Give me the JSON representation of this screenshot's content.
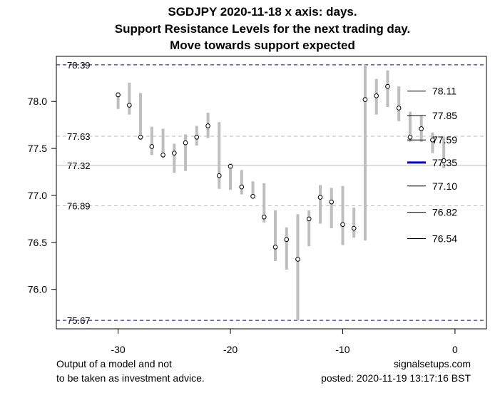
{
  "chart_data": {
    "type": "range",
    "title_lines": [
      "SGDJPY 2020-11-18 x axis: days.",
      "Support Resistance Levels for the next trading day.",
      "Move towards support expected"
    ],
    "xlim": [
      -35.5,
      2.8
    ],
    "ylim": [
      75.58,
      78.48
    ],
    "x_ticks": [
      {
        "value": -30,
        "label": "-30"
      },
      {
        "value": -20,
        "label": "-20"
      },
      {
        "value": -10,
        "label": "-10"
      },
      {
        "value": 0,
        "label": "0"
      }
    ],
    "y_ticks": [
      {
        "value": 76.0,
        "label": "76.0"
      },
      {
        "value": 76.5,
        "label": "76.5"
      },
      {
        "value": 77.0,
        "label": "77.0"
      },
      {
        "value": 77.5,
        "label": "77.5"
      },
      {
        "value": 78.0,
        "label": "78.0"
      }
    ],
    "hlines": [
      {
        "value": 78.39,
        "label": "78.39",
        "style": "dashed",
        "color": "#00008B"
      },
      {
        "value": 77.63,
        "label": "77.63",
        "style": "dashed",
        "color": "#BEBEBE"
      },
      {
        "value": 77.32,
        "label": "77.32",
        "style": "solid",
        "color": "#BEBEBE"
      },
      {
        "value": 76.89,
        "label": "76.89",
        "style": "dashed",
        "color": "#BEBEBE"
      },
      {
        "value": 75.67,
        "label": "75.67",
        "style": "dashed",
        "color": "#00008B"
      }
    ],
    "bars": [
      {
        "x": -30,
        "low": 77.92,
        "high": 78.1,
        "close": 78.07
      },
      {
        "x": -29,
        "low": 77.86,
        "high": 78.2,
        "close": 77.96
      },
      {
        "x": -28,
        "low": 77.59,
        "high": 78.09,
        "close": 77.62
      },
      {
        "x": -27,
        "low": 77.43,
        "high": 77.73,
        "close": 77.52
      },
      {
        "x": -26,
        "low": 77.4,
        "high": 77.71,
        "close": 77.43
      },
      {
        "x": -25,
        "low": 77.24,
        "high": 77.55,
        "close": 77.45
      },
      {
        "x": -24,
        "low": 77.26,
        "high": 77.65,
        "close": 77.56
      },
      {
        "x": -23,
        "low": 77.53,
        "high": 77.74,
        "close": 77.62
      },
      {
        "x": -22,
        "low": 77.61,
        "high": 77.88,
        "close": 77.74
      },
      {
        "x": -21,
        "low": 77.07,
        "high": 77.78,
        "close": 77.21
      },
      {
        "x": -20,
        "low": 77.06,
        "high": 77.34,
        "close": 77.31
      },
      {
        "x": -19,
        "low": 77.01,
        "high": 77.27,
        "close": 77.09
      },
      {
        "x": -18,
        "low": 76.98,
        "high": 77.15,
        "close": 76.99
      },
      {
        "x": -17,
        "low": 76.71,
        "high": 77.13,
        "close": 76.77
      },
      {
        "x": -16,
        "low": 76.3,
        "high": 76.84,
        "close": 76.45
      },
      {
        "x": -15,
        "low": 76.21,
        "high": 76.66,
        "close": 76.53
      },
      {
        "x": -14,
        "low": 75.67,
        "high": 76.8,
        "close": 76.32
      },
      {
        "x": -13,
        "low": 76.46,
        "high": 76.84,
        "close": 76.75
      },
      {
        "x": -12,
        "low": 76.7,
        "high": 77.11,
        "close": 76.98
      },
      {
        "x": -11,
        "low": 76.65,
        "high": 77.08,
        "close": 76.93
      },
      {
        "x": -10,
        "low": 76.47,
        "high": 77.1,
        "close": 76.69
      },
      {
        "x": -9,
        "low": 76.55,
        "high": 76.87,
        "close": 76.65
      },
      {
        "x": -8,
        "low": 76.52,
        "high": 78.39,
        "close": 78.02
      },
      {
        "x": -7,
        "low": 77.86,
        "high": 78.24,
        "close": 78.06
      },
      {
        "x": -6,
        "low": 77.94,
        "high": 78.33,
        "close": 78.16
      },
      {
        "x": -5,
        "low": 77.79,
        "high": 78.16,
        "close": 77.93
      },
      {
        "x": -4,
        "low": 77.57,
        "high": 77.89,
        "close": 77.62
      },
      {
        "x": -3,
        "low": 77.57,
        "high": 77.85,
        "close": 77.71
      },
      {
        "x": -2,
        "low": 77.45,
        "high": 77.67,
        "close": 77.59
      },
      {
        "x": -1,
        "low": 77.29,
        "high": 77.62,
        "close": 77.37
      }
    ],
    "forecast_levels": [
      {
        "value": 78.11,
        "label": "78.11",
        "highlight": false
      },
      {
        "value": 77.85,
        "label": "77.85",
        "highlight": false
      },
      {
        "value": 77.59,
        "label": "77.59",
        "highlight": false
      },
      {
        "value": 77.35,
        "label": "77.35",
        "highlight": true
      },
      {
        "value": 77.1,
        "label": "77.10",
        "highlight": false
      },
      {
        "value": 76.82,
        "label": "76.82",
        "highlight": false
      },
      {
        "value": 76.54,
        "label": "76.54",
        "highlight": false
      }
    ],
    "colors": {
      "bar": "#BEBEBE",
      "highlight": "#0000CD",
      "support_resistance": "#00008B",
      "axis": "#000000"
    }
  },
  "footer": {
    "disclaimer_line1": "Output of a model and not",
    "disclaimer_line2": "to be taken as investment advice.",
    "site": "signalsetups.com",
    "posted": "posted: 2020-11-19 13:17:16 BST"
  }
}
